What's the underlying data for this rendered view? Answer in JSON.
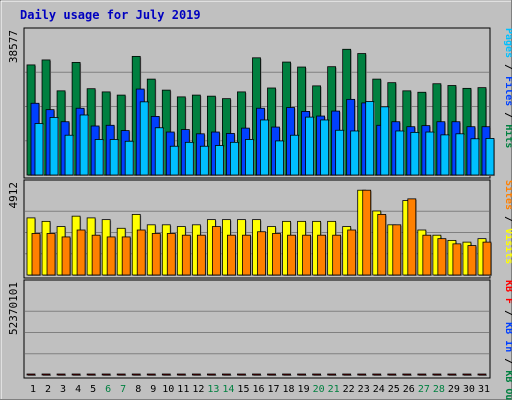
{
  "chart_data": {
    "type": "bar",
    "title": "Daily usage for July 2019",
    "colors": {
      "background": "#c0c0c0",
      "border": "#808080",
      "title": "#0000c0",
      "pages": "#00c0ff",
      "files": "#0040ff",
      "hits": "#008040",
      "sites": "#ff8000",
      "visits": "#ffff00",
      "kbytes": "#ff0000",
      "day_normal": "#000000",
      "day_weekend": "#008040"
    },
    "categories": [
      "1",
      "2",
      "3",
      "4",
      "5",
      "6",
      "7",
      "8",
      "9",
      "10",
      "11",
      "12",
      "13",
      "14",
      "15",
      "16",
      "17",
      "18",
      "19",
      "20",
      "21",
      "22",
      "23",
      "24",
      "25",
      "26",
      "27",
      "28",
      "29",
      "30",
      "31"
    ],
    "weekend_days": [
      "6",
      "7",
      "13",
      "14",
      "20",
      "21",
      "27",
      "28"
    ],
    "panels": [
      {
        "id": "hits-panel",
        "ymax": 38577,
        "ylabel_value": "38577",
        "legend": [
          {
            "text": "Pages",
            "color": "#00c0ff"
          },
          {
            "text": "Files",
            "color": "#0040ff"
          },
          {
            "text": "Hits",
            "color": "#008040"
          }
        ],
        "series": [
          {
            "key": "hits",
            "color": "#008040",
            "values": [
              31000,
              32400,
              23700,
              31700,
              24300,
              23400,
              22500,
              33400,
              27000,
              23900,
              22000,
              22500,
              22200,
              21500,
              23400,
              33000,
              24500,
              31800,
              30400,
              25100,
              30500,
              35400,
              34200,
              27000,
              26000,
              23700,
              23300,
              25700,
              25200,
              24400,
              24600
            ]
          },
          {
            "key": "files",
            "color": "#0040ff",
            "values": [
              20200,
              18400,
              15000,
              18800,
              13800,
              14000,
              12500,
              24200,
              16500,
              12100,
              12800,
              11600,
              12100,
              11700,
              13200,
              18800,
              13500,
              19000,
              17900,
              16600,
              18000,
              21300,
              20300,
              14000,
              15000,
              13600,
              13900,
              15000,
              15000,
              13600,
              13600
            ]
          },
          {
            "key": "pages",
            "color": "#00c0ff",
            "values": [
              14500,
              16200,
              11200,
              16900,
              10000,
              10000,
              9500,
              20600,
              13300,
              8100,
              9200,
              8100,
              8300,
              9200,
              10000,
              15500,
              9600,
              11200,
              16300,
              15500,
              12600,
              12400,
              20700,
              19200,
              12400,
              12000,
              12100,
              11300,
              11600,
              10200,
              10300
            ]
          }
        ]
      },
      {
        "id": "visits-panel",
        "ymax": 4912,
        "ylabel_value": "4912",
        "legend": [
          {
            "text": "Sites",
            "color": "#ff8000"
          },
          {
            "text": "Visits",
            "color": "#ffff00"
          }
        ],
        "series": [
          {
            "key": "visits",
            "color": "#ffff00",
            "values": [
              3300,
              3100,
              2800,
              3400,
              3300,
              3200,
              2700,
              3500,
              2900,
              2900,
              2800,
              2900,
              3200,
              3200,
              3200,
              3200,
              2800,
              3100,
              3100,
              3100,
              3100,
              2800,
              4900,
              3700,
              2900,
              4300,
              2600,
              2300,
              2000,
              1900,
              2100
            ]
          },
          {
            "key": "sites",
            "color": "#ff8000",
            "values": [
              2400,
              2400,
              2200,
              2600,
              2300,
              2200,
              2200,
              2600,
              2400,
              2400,
              2300,
              2300,
              2800,
              2300,
              2300,
              2500,
              2400,
              2300,
              2300,
              2300,
              2300,
              2600,
              4900,
              3500,
              2900,
              4400,
              2300,
              2100,
              1800,
              1700,
              1900
            ]
          }
        ]
      },
      {
        "id": "kbytes-panel",
        "ymax": 52370101,
        "ylabel_value": "52370101",
        "legend": [
          {
            "text": "KB F",
            "color": "#ff0000"
          },
          {
            "text": "KB In",
            "color": "#0040ff"
          },
          {
            "text": "KB Out",
            "color": "#008040"
          }
        ],
        "series": [
          {
            "key": "kbytes",
            "color": "#ff0000",
            "values": [
              11000,
              17000,
              11500,
              35000,
              35000,
              33000,
              34000,
              52000,
              47000,
              30000,
              31500,
              40000,
              29000,
              38000,
              25500,
              42000,
              42500,
              37000,
              37500,
              37000,
              26000,
              34000,
              32000,
              11000,
              12000,
              24500,
              24500,
              31000,
              15500,
              13500,
              19500
            ]
          }
        ]
      }
    ]
  }
}
